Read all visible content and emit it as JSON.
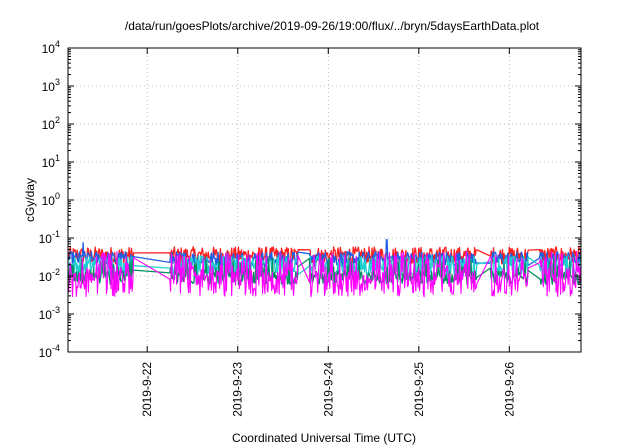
{
  "chart_data": {
    "type": "line",
    "title": "/data/run/goesPlots/archive/2019-09-26/19:00/flux/../bryn/5daysEarthData.plot",
    "xlabel": "Coordinated Universal Time (UTC)",
    "ylabel": "cGy/day",
    "yscale": "log",
    "ylim": [
      0.0001,
      10000
    ],
    "xlim": [
      "2019-09-21T03:00",
      "2019-09-26T19:00"
    ],
    "grid": true,
    "legend": "none",
    "y_ticks": [
      {
        "base": "10",
        "exp": "-4",
        "value": 0.0001
      },
      {
        "base": "10",
        "exp": "-3",
        "value": 0.001
      },
      {
        "base": "10",
        "exp": "-2",
        "value": 0.01
      },
      {
        "base": "10",
        "exp": "-1",
        "value": 0.1
      },
      {
        "base": "10",
        "exp": "0",
        "value": 1
      },
      {
        "base": "10",
        "exp": "1",
        "value": 10
      },
      {
        "base": "10",
        "exp": "2",
        "value": 100
      },
      {
        "base": "10",
        "exp": "3",
        "value": 1000
      },
      {
        "base": "10",
        "exp": "4",
        "value": 10000
      }
    ],
    "x_ticks": [
      {
        "label": "2019-9-22",
        "date": "2019-09-22T00:00"
      },
      {
        "label": "2019-9-23",
        "date": "2019-09-23T00:00"
      },
      {
        "label": "2019-9-24",
        "date": "2019-09-24T00:00"
      },
      {
        "label": "2019-9-25",
        "date": "2019-09-25T00:00"
      },
      {
        "label": "2019-9-26",
        "date": "2019-09-26T00:00"
      }
    ],
    "gaps": [
      [
        "2019-09-21T20:30",
        "2019-09-22T06:00"
      ],
      [
        "2019-09-23T16:00",
        "2019-09-23T19:00"
      ],
      [
        "2019-09-25T15:30",
        "2019-09-25T19:00"
      ],
      [
        "2019-09-26T05:00",
        "2019-09-26T08:00"
      ]
    ],
    "spikes": [
      {
        "date": "2019-09-21T07:00",
        "value": 0.075
      },
      {
        "date": "2019-09-24T15:30",
        "value": 0.09
      }
    ],
    "series": [
      {
        "color": "#ff2020",
        "base": 0.035,
        "jitter": 0.45
      },
      {
        "color": "#2060e0",
        "base": 0.028,
        "jitter": 0.4
      },
      {
        "color": "#20d0d0",
        "base": 0.018,
        "jitter": 0.55
      },
      {
        "color": "#009060",
        "base": 0.009,
        "jitter": 0.35
      },
      {
        "color": "#ff00ff",
        "base": 0.006,
        "jitter": 0.65
      }
    ]
  }
}
